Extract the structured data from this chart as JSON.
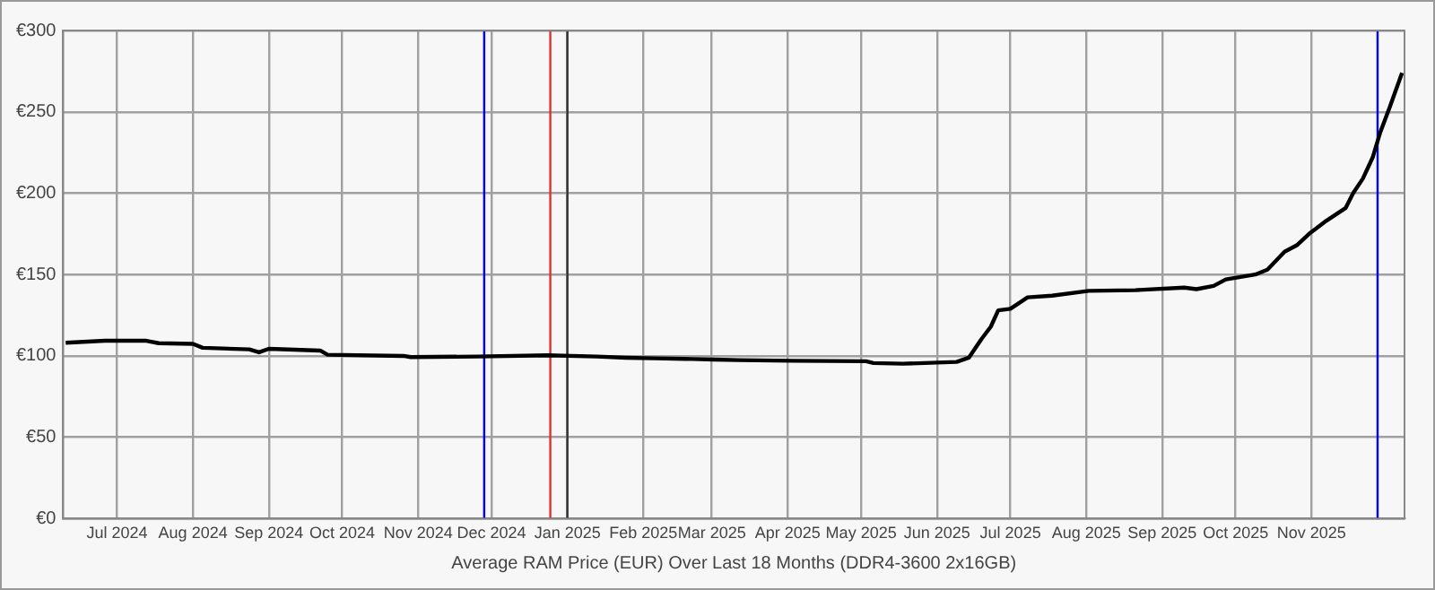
{
  "chart_data": {
    "type": "line",
    "xlabel": "Average RAM Price (EUR) Over Last 18 Months (DDR4-3600 2x16GB)",
    "x": [
      "2024-06-10",
      "2024-06-19",
      "2024-06-26",
      "2024-07-13",
      "2024-07-18",
      "2024-08-01",
      "2024-08-05",
      "2024-08-24",
      "2024-08-28",
      "2024-09-01",
      "2024-09-22",
      "2024-09-25",
      "2024-10-26",
      "2024-10-29",
      "2024-11-25",
      "2024-12-24",
      "2025-01-13",
      "2025-01-25",
      "2025-02-06",
      "2025-02-21",
      "2025-03-02",
      "2025-03-12",
      "2025-04-03",
      "2025-05-03",
      "2025-05-06",
      "2025-05-18",
      "2025-06-09",
      "2025-06-14",
      "2025-06-19",
      "2025-06-23",
      "2025-06-26",
      "2025-07-01",
      "2025-07-08",
      "2025-07-18",
      "2025-08-02",
      "2025-08-21",
      "2025-09-10",
      "2025-09-15",
      "2025-09-22",
      "2025-09-27",
      "2025-10-09",
      "2025-10-14",
      "2025-10-21",
      "2025-10-26",
      "2025-10-31",
      "2025-11-07",
      "2025-11-15",
      "2025-11-18",
      "2025-11-22",
      "2025-11-26",
      "2025-11-29",
      "2025-12-03",
      "2025-12-08"
    ],
    "series": [
      {
        "color": "#000000",
        "values": [
          108.1,
          108.8,
          109.3,
          109.3,
          107.8,
          107.4,
          105,
          104,
          102.2,
          104.4,
          103.3,
          100.7,
          100,
          99.3,
          99.6,
          100.4,
          99.6,
          98.9,
          98.5,
          98.1,
          97.8,
          97.4,
          97,
          96.7,
          95.6,
          95.2,
          96.3,
          98.9,
          110,
          118,
          128,
          129,
          136,
          137,
          140,
          140.4,
          142,
          141,
          143,
          147,
          150,
          153,
          164,
          168,
          175,
          183,
          191,
          200,
          209,
          222,
          237,
          253,
          274
        ]
      }
    ],
    "xlim": [
      "2024-06-09",
      "2025-12-09"
    ],
    "xticks": [
      {
        "value": "2024-07-01",
        "label": "Jul 2024"
      },
      {
        "value": "2024-08-01",
        "label": "Aug 2024"
      },
      {
        "value": "2024-09-01",
        "label": "Sep 2024"
      },
      {
        "value": "2024-10-01",
        "label": "Oct 2024"
      },
      {
        "value": "2024-11-01",
        "label": "Nov 2024"
      },
      {
        "value": "2024-12-01",
        "label": "Dec 2024"
      },
      {
        "value": "2025-01-01",
        "label": "Jan 2025"
      },
      {
        "value": "2025-02-01",
        "label": "Feb 2025"
      },
      {
        "value": "2025-03-01",
        "label": "Mar 2025"
      },
      {
        "value": "2025-04-01",
        "label": "Apr 2025"
      },
      {
        "value": "2025-05-01",
        "label": "May 2025"
      },
      {
        "value": "2025-06-01",
        "label": "Jun 2025"
      },
      {
        "value": "2025-07-01",
        "label": "Jul 2025"
      },
      {
        "value": "2025-08-01",
        "label": "Aug 2025"
      },
      {
        "value": "2025-09-01",
        "label": "Sep 2025"
      },
      {
        "value": "2025-10-01",
        "label": "Oct 2025"
      },
      {
        "value": "2025-11-01",
        "label": "Nov 2025"
      }
    ],
    "ylim": [
      0,
      300
    ],
    "yticks": [
      {
        "value": 0,
        "label": "€0"
      },
      {
        "value": 50,
        "label": "€50"
      },
      {
        "value": 100,
        "label": "€100"
      },
      {
        "value": 150,
        "label": "€150"
      },
      {
        "value": 200,
        "label": "€200"
      },
      {
        "value": 250,
        "label": "€250"
      },
      {
        "value": 300,
        "label": "€300"
      }
    ],
    "ref_lines": [
      {
        "axis": "x",
        "value": "2024-11-28",
        "color": "#0000ff"
      },
      {
        "axis": "x",
        "value": "2024-12-25",
        "color": "#e03030"
      },
      {
        "axis": "x",
        "value": "2025-01-01",
        "color": "#333333"
      },
      {
        "axis": "x",
        "value": "2025-11-28",
        "color": "#0000ff"
      }
    ],
    "grid": true,
    "legend": false,
    "marker": "none",
    "line_style": "solid"
  }
}
